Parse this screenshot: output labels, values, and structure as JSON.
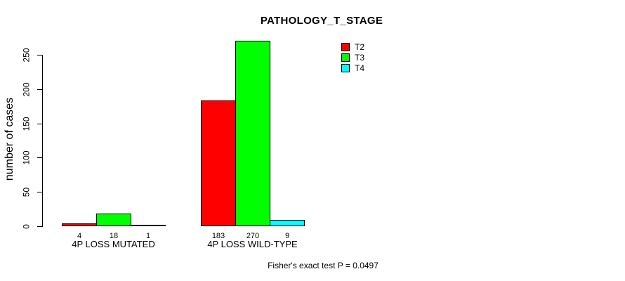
{
  "chart_data": {
    "type": "bar",
    "title": "PATHOLOGY_T_STAGE",
    "ylabel": "number of cases",
    "xlabel": "",
    "categories": [
      "4P LOSS MUTATED",
      "4P LOSS WILD-TYPE"
    ],
    "series": [
      {
        "name": "T2",
        "color": "#ff0000",
        "values": [
          4,
          183
        ]
      },
      {
        "name": "T3",
        "color": "#00ff00",
        "values": [
          18,
          270
        ]
      },
      {
        "name": "T4",
        "color": "#00ffff",
        "values": [
          1,
          9
        ]
      }
    ],
    "bar_value_labels": [
      [
        "4",
        "18",
        "1"
      ],
      [
        "183",
        "270",
        "9"
      ]
    ],
    "yticks": [
      0,
      50,
      100,
      150,
      200,
      250
    ],
    "ylim": [
      0,
      250
    ],
    "grid": false,
    "legend_position": "top-right",
    "legend_items": [
      "T2",
      "T3",
      "T4"
    ],
    "annotation": "Fisher's exact test P = 0.0497"
  },
  "colors": {
    "bar_border": "#000000",
    "axis": "#000000",
    "text": "#000000",
    "background": "#ffffff"
  }
}
